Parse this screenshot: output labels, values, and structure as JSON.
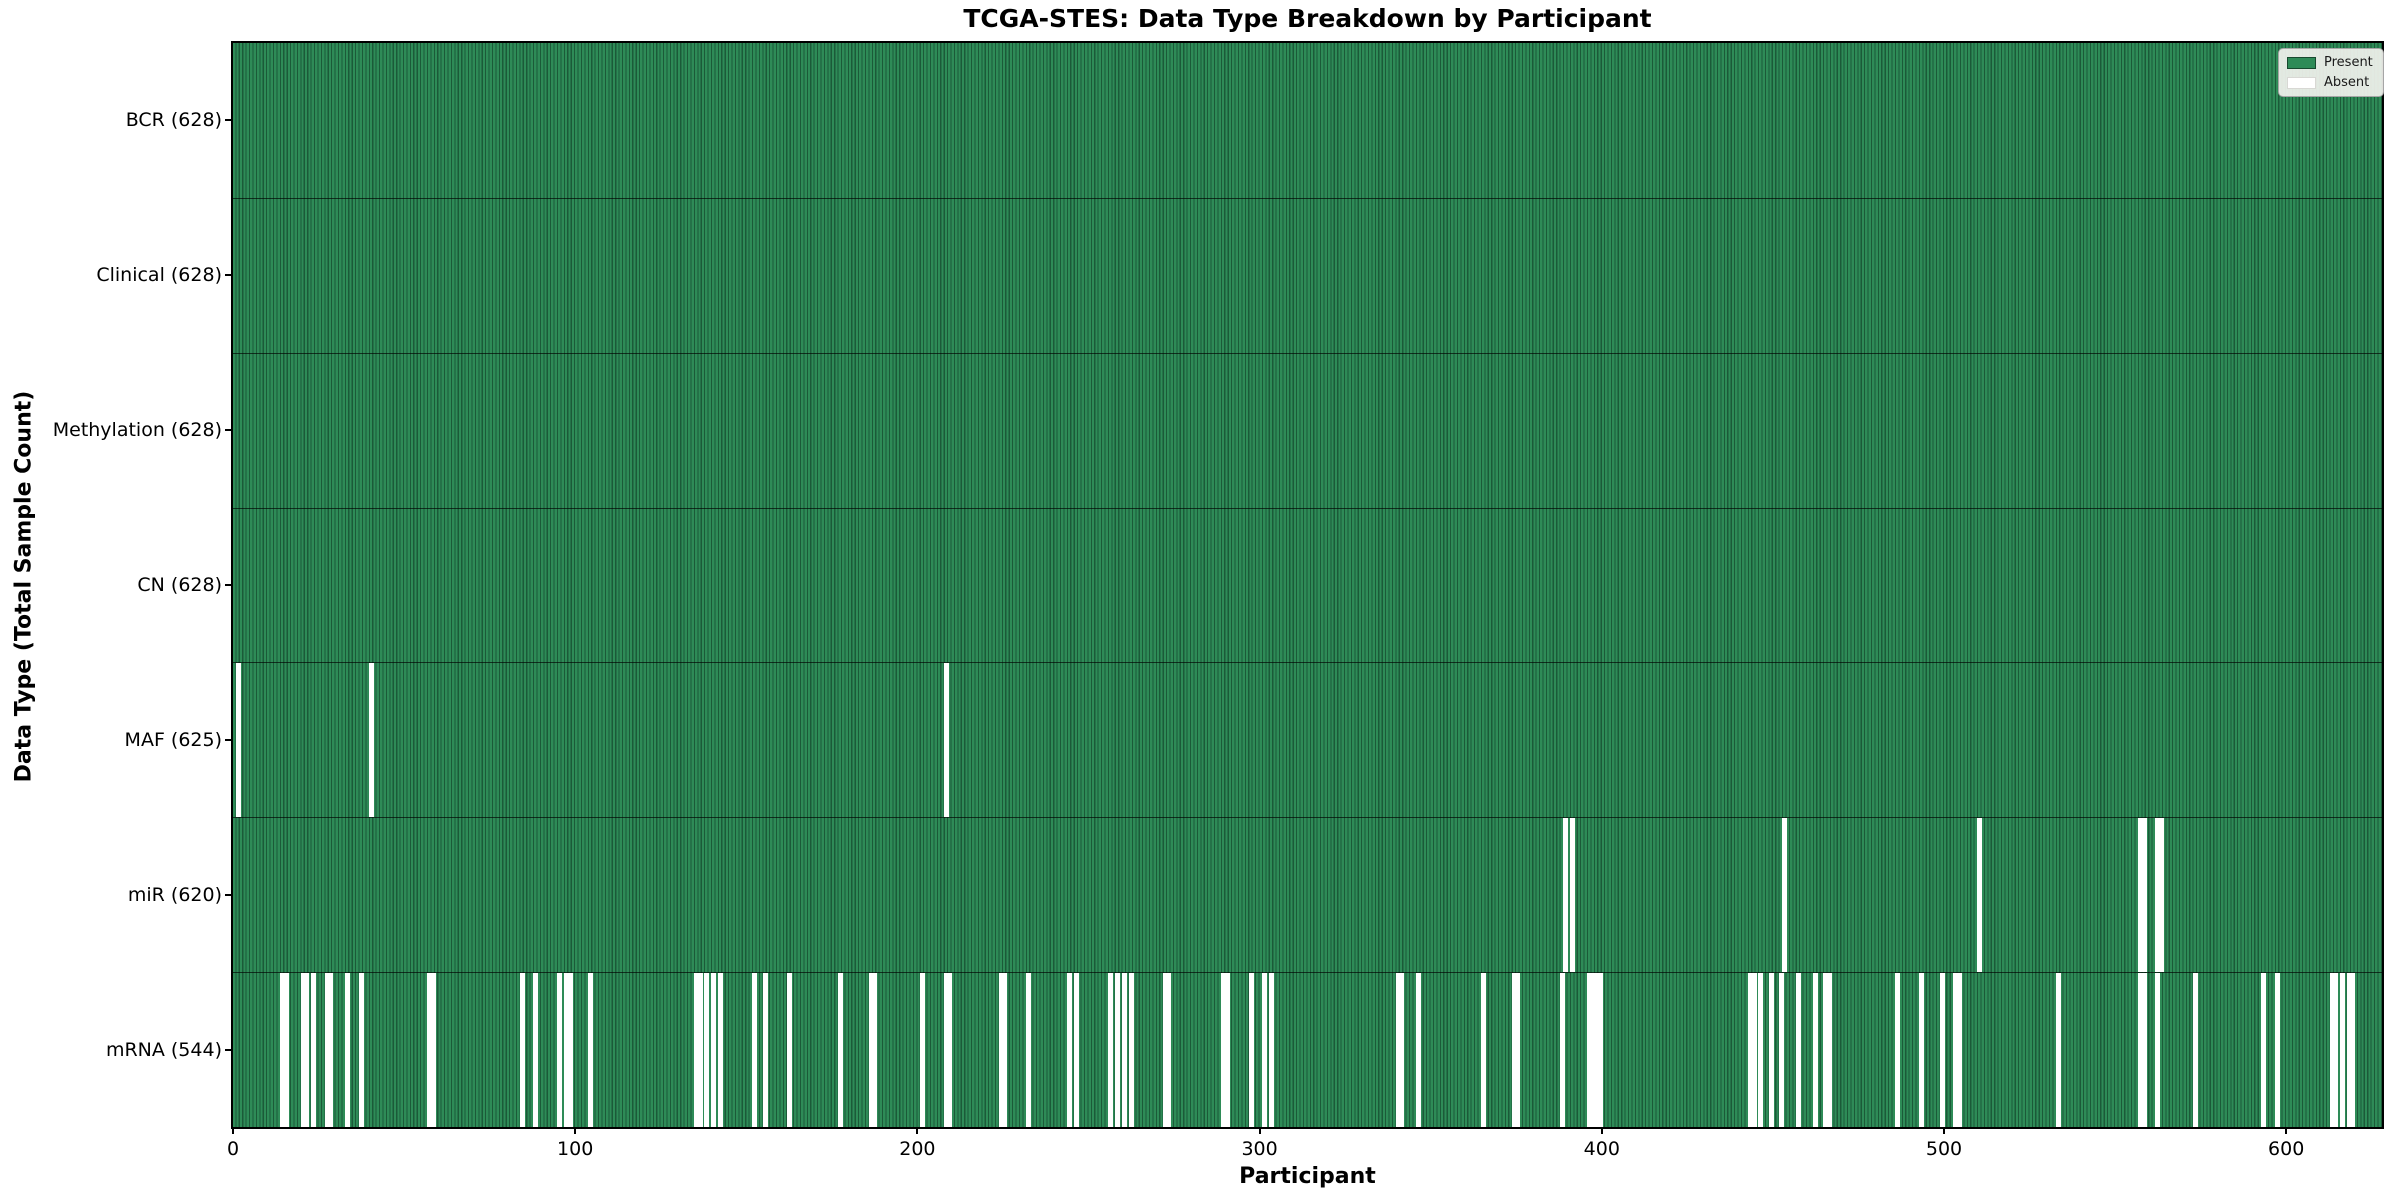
{
  "chart_data": {
    "type": "heatmap",
    "title": "TCGA-STES: Data Type Breakdown by Participant",
    "xlabel": "Participant",
    "ylabel": "Data Type (Total Sample Count)",
    "n_participants": 628,
    "x_ticks": [
      0,
      100,
      200,
      300,
      400,
      500,
      600
    ],
    "xlim": [
      0,
      628
    ],
    "grid": false,
    "legend_position": "upper right",
    "legend": [
      {
        "label": "Present",
        "color": "#2e8b57"
      },
      {
        "label": "Absent",
        "color": "#ffffff"
      }
    ],
    "colors": {
      "present_fill": "#2e8b57",
      "present_edge": "#1b5a38",
      "absent_fill": "#ffffff"
    },
    "rows": [
      {
        "label": "BCR (628)",
        "name": "BCR",
        "count": 628,
        "absent": []
      },
      {
        "label": "Clinical (628)",
        "name": "Clinical",
        "count": 628,
        "absent": []
      },
      {
        "label": "Methylation (628)",
        "name": "Methylation",
        "count": 628,
        "absent": []
      },
      {
        "label": "CN (628)",
        "name": "CN",
        "count": 628,
        "absent": []
      },
      {
        "label": "MAF (625)",
        "name": "MAF",
        "count": 625,
        "absent": [
          1,
          40,
          208
        ]
      },
      {
        "label": "miR (620)",
        "name": "miR",
        "count": 620,
        "absent": [
          389,
          391,
          453,
          510,
          557,
          558,
          562,
          563
        ]
      },
      {
        "label": "mRNA (544)",
        "name": "mRNA",
        "count": 544,
        "absent": [
          14,
          15,
          20,
          21,
          23,
          27,
          28,
          33,
          37,
          57,
          58,
          84,
          88,
          95,
          97,
          98,
          104,
          135,
          136,
          138,
          140,
          142,
          152,
          155,
          162,
          177,
          186,
          187,
          201,
          208,
          209,
          224,
          225,
          232,
          244,
          246,
          256,
          258,
          260,
          262,
          272,
          273,
          289,
          290,
          297,
          301,
          303,
          340,
          341,
          346,
          365,
          374,
          375,
          388,
          396,
          397,
          398,
          399,
          443,
          444,
          446,
          449,
          452,
          457,
          462,
          465,
          466,
          486,
          493,
          499,
          503,
          504,
          533,
          557,
          558,
          562,
          573,
          593,
          597,
          613,
          614,
          616,
          618,
          619
        ]
      }
    ]
  }
}
